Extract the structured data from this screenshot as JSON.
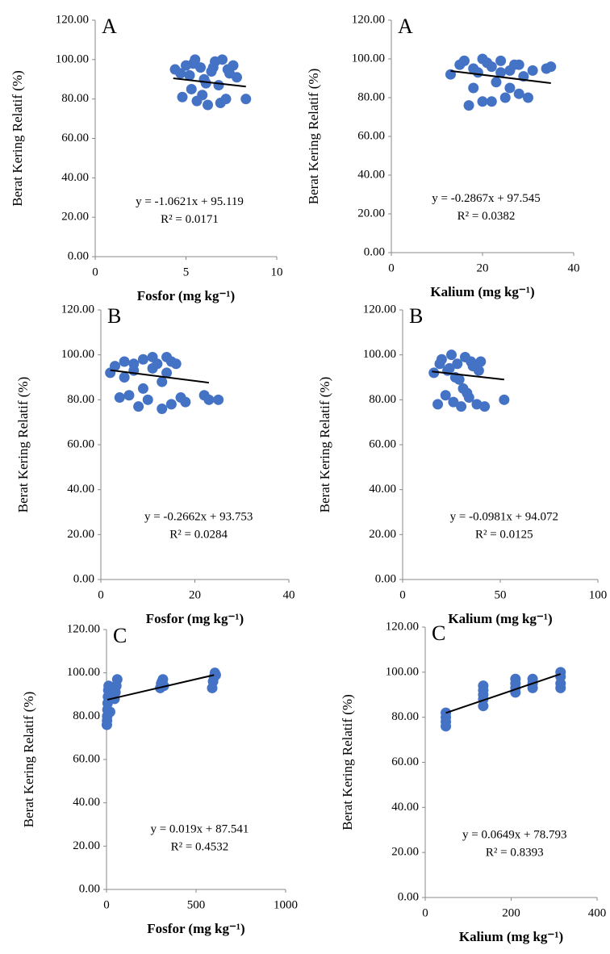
{
  "chart_data": [
    {
      "type": "scatter",
      "label": "A",
      "x_label": "Fosfor (mg kg⁻¹)",
      "y_label": "Berat Kering Relatif (%)",
      "equation": "y = -1.0621x + 95.119",
      "r2": "R² = 0.0171",
      "color": "#4472c4",
      "xlim": [
        0,
        10
      ],
      "xticks": [
        0,
        5,
        10
      ],
      "ylim": [
        0,
        120
      ],
      "yticks": [
        {
          "value": 0,
          "label": "0.00"
        },
        {
          "value": 20,
          "label": "20.00"
        },
        {
          "value": 40,
          "label": "40.00"
        },
        {
          "value": 60,
          "label": "60.00"
        },
        {
          "value": 80,
          "label": "80.00"
        },
        {
          "value": 100,
          "label": "100.00"
        },
        {
          "value": 120,
          "label": "120.00"
        }
      ],
      "x": [
        4.4,
        4.8,
        5.0,
        5.2,
        5.4,
        5.6,
        5.8,
        6.0,
        6.2,
        6.4,
        6.6,
        6.8,
        7.0,
        7.2,
        7.4,
        7.6,
        7.8,
        8.3,
        4.7,
        5.3,
        5.9,
        6.5,
        6.9,
        7.3,
        5.5,
        6.1
      ],
      "values": [
        95,
        81,
        97,
        92,
        98,
        79,
        96,
        90,
        77,
        94,
        99,
        87,
        100,
        80,
        93,
        97,
        91,
        80,
        93,
        85,
        82,
        96,
        78,
        95,
        100,
        88
      ],
      "trendline": {
        "x": [
          4.3,
          8.3
        ],
        "values": [
          90.5,
          86.3
        ]
      }
    },
    {
      "type": "scatter",
      "label": "A",
      "x_label": "Kalium (mg kg⁻¹)",
      "y_label": "Berat Kering Relatif (%)",
      "equation": "y = -0.2867x + 97.545",
      "r2": "R² = 0.0382",
      "color": "#4472c4",
      "xlim": [
        0,
        40
      ],
      "xticks": [
        0,
        20,
        40
      ],
      "ylim": [
        0,
        120
      ],
      "yticks": [
        {
          "value": 0,
          "label": "0.00"
        },
        {
          "value": 20,
          "label": "20.00"
        },
        {
          "value": 40,
          "label": "40.00"
        },
        {
          "value": 60,
          "label": "60.00"
        },
        {
          "value": 80,
          "label": "80.00"
        },
        {
          "value": 100,
          "label": "100.00"
        },
        {
          "value": 120,
          "label": "120.00"
        }
      ],
      "x": [
        13,
        15,
        16,
        17,
        18,
        19,
        20,
        21,
        22,
        23,
        24,
        25,
        26,
        27,
        28,
        29,
        30,
        31,
        34,
        35,
        18,
        20,
        22,
        24,
        26,
        16,
        28
      ],
      "values": [
        92,
        97,
        99,
        76,
        95,
        93,
        78,
        98,
        96,
        88,
        99,
        80,
        94,
        97,
        82,
        91,
        80,
        94,
        95,
        96,
        85,
        100,
        78,
        93,
        85,
        99,
        97
      ],
      "trendline": {
        "x": [
          13,
          35
        ],
        "values": [
          93.8,
          87.5
        ]
      }
    },
    {
      "type": "scatter",
      "label": "B",
      "x_label": "Fosfor (mg kg⁻¹)",
      "y_label": "Berat Kering Relatif (%)",
      "equation": "y = -0.2662x + 93.753",
      "r2": "R² = 0.0284",
      "color": "#4472c4",
      "xlim": [
        0,
        40
      ],
      "xticks": [
        0,
        20,
        40
      ],
      "ylim": [
        0,
        120
      ],
      "yticks": [
        {
          "value": 0,
          "label": "0.00"
        },
        {
          "value": 20,
          "label": "20.00"
        },
        {
          "value": 40,
          "label": "40.00"
        },
        {
          "value": 60,
          "label": "60.00"
        },
        {
          "value": 80,
          "label": "80.00"
        },
        {
          "value": 100,
          "label": "100.00"
        },
        {
          "value": 120,
          "label": "120.00"
        }
      ],
      "x": [
        2,
        3,
        4,
        5,
        6,
        7,
        8,
        9,
        10,
        11,
        12,
        13,
        14,
        15,
        16,
        17,
        18,
        22,
        23,
        25,
        7,
        9,
        11,
        13,
        15,
        5,
        14
      ],
      "values": [
        92,
        95,
        81,
        97,
        82,
        96,
        77,
        98,
        80,
        94,
        96,
        76,
        99,
        78,
        96,
        81,
        79,
        82,
        80,
        80,
        93,
        85,
        99,
        88,
        97,
        90,
        92
      ],
      "trendline": {
        "x": [
          2,
          23
        ],
        "values": [
          93.2,
          87.6
        ]
      }
    },
    {
      "type": "scatter",
      "label": "B",
      "x_label": "Kalium (mg kg⁻¹)",
      "y_label": "Berat Kering Relatif (%)",
      "equation": "y = -0.0981x + 94.072",
      "r2": "R² = 0.0125",
      "color": "#4472c4",
      "xlim": [
        0,
        100
      ],
      "xticks": [
        0,
        50,
        100
      ],
      "ylim": [
        0,
        120
      ],
      "yticks": [
        {
          "value": 0,
          "label": "0.00"
        },
        {
          "value": 20,
          "label": "20.00"
        },
        {
          "value": 40,
          "label": "40.00"
        },
        {
          "value": 60,
          "label": "60.00"
        },
        {
          "value": 80,
          "label": "80.00"
        },
        {
          "value": 100,
          "label": "100.00"
        },
        {
          "value": 120,
          "label": "120.00"
        }
      ],
      "x": [
        16,
        18,
        20,
        22,
        24,
        26,
        28,
        30,
        32,
        34,
        36,
        38,
        40,
        42,
        52,
        19,
        23,
        27,
        31,
        35,
        39,
        25,
        29,
        33
      ],
      "values": [
        92,
        78,
        98,
        82,
        94,
        79,
        96,
        77,
        99,
        81,
        95,
        78,
        97,
        77,
        80,
        96,
        93,
        90,
        85,
        97,
        93,
        100,
        89,
        83
      ],
      "trendline": {
        "x": [
          15,
          52
        ],
        "values": [
          92.6,
          89.0
        ]
      }
    },
    {
      "type": "scatter",
      "label": "C",
      "x_label": "Fosfor (mg kg⁻¹)",
      "y_label": "Berat Kering Relatif (%)",
      "equation": "y = 0.019x + 87.541",
      "r2": "R² = 0.4532",
      "color": "#4472c4",
      "xlim": [
        0,
        1000
      ],
      "xticks": [
        0,
        500,
        1000
      ],
      "ylim": [
        0,
        120
      ],
      "yticks": [
        {
          "value": 0,
          "label": "0.00"
        },
        {
          "value": 20,
          "label": "20.00"
        },
        {
          "value": 40,
          "label": "40.00"
        },
        {
          "value": 60,
          "label": "60.00"
        },
        {
          "value": 80,
          "label": "80.00"
        },
        {
          "value": 100,
          "label": "100.00"
        },
        {
          "value": 120,
          "label": "120.00"
        }
      ],
      "x": [
        2,
        3,
        4,
        5,
        6,
        8,
        10,
        12,
        15,
        20,
        45,
        50,
        55,
        60,
        300,
        305,
        310,
        315,
        320,
        590,
        595,
        600,
        605,
        610
      ],
      "values": [
        76,
        78,
        80,
        83,
        86,
        89,
        92,
        94,
        90,
        82,
        88,
        91,
        94,
        97,
        93,
        95,
        96,
        97,
        94,
        93,
        96,
        98,
        100,
        99
      ],
      "trendline": {
        "x": [
          5,
          600
        ],
        "values": [
          87.6,
          99.0
        ]
      }
    },
    {
      "type": "scatter",
      "label": "C",
      "x_label": "Kalium (mg kg⁻¹)",
      "y_label": "Berat Kering Relatif (%)",
      "equation": "y = 0.0649x + 78.793",
      "r2": "R² = 0.8393",
      "color": "#4472c4",
      "xlim": [
        0,
        400
      ],
      "xticks": [
        0,
        200,
        400
      ],
      "ylim": [
        0,
        120
      ],
      "yticks": [
        {
          "value": 0,
          "label": "0.00"
        },
        {
          "value": 20,
          "label": "20.00"
        },
        {
          "value": 40,
          "label": "40.00"
        },
        {
          "value": 60,
          "label": "60.00"
        },
        {
          "value": 80,
          "label": "80.00"
        },
        {
          "value": 100,
          "label": "100.00"
        },
        {
          "value": 120,
          "label": "120.00"
        }
      ],
      "x": [
        48,
        48,
        48,
        48,
        135,
        135,
        135,
        135,
        135,
        210,
        210,
        210,
        210,
        250,
        250,
        250,
        315,
        315,
        315,
        315
      ],
      "values": [
        76,
        78,
        80,
        82,
        85,
        88,
        90,
        92,
        94,
        91,
        93,
        95,
        97,
        93,
        95,
        97,
        93,
        95,
        98,
        100
      ],
      "trendline": {
        "x": [
          48,
          315
        ],
        "values": [
          81.9,
          99.2
        ]
      }
    }
  ]
}
